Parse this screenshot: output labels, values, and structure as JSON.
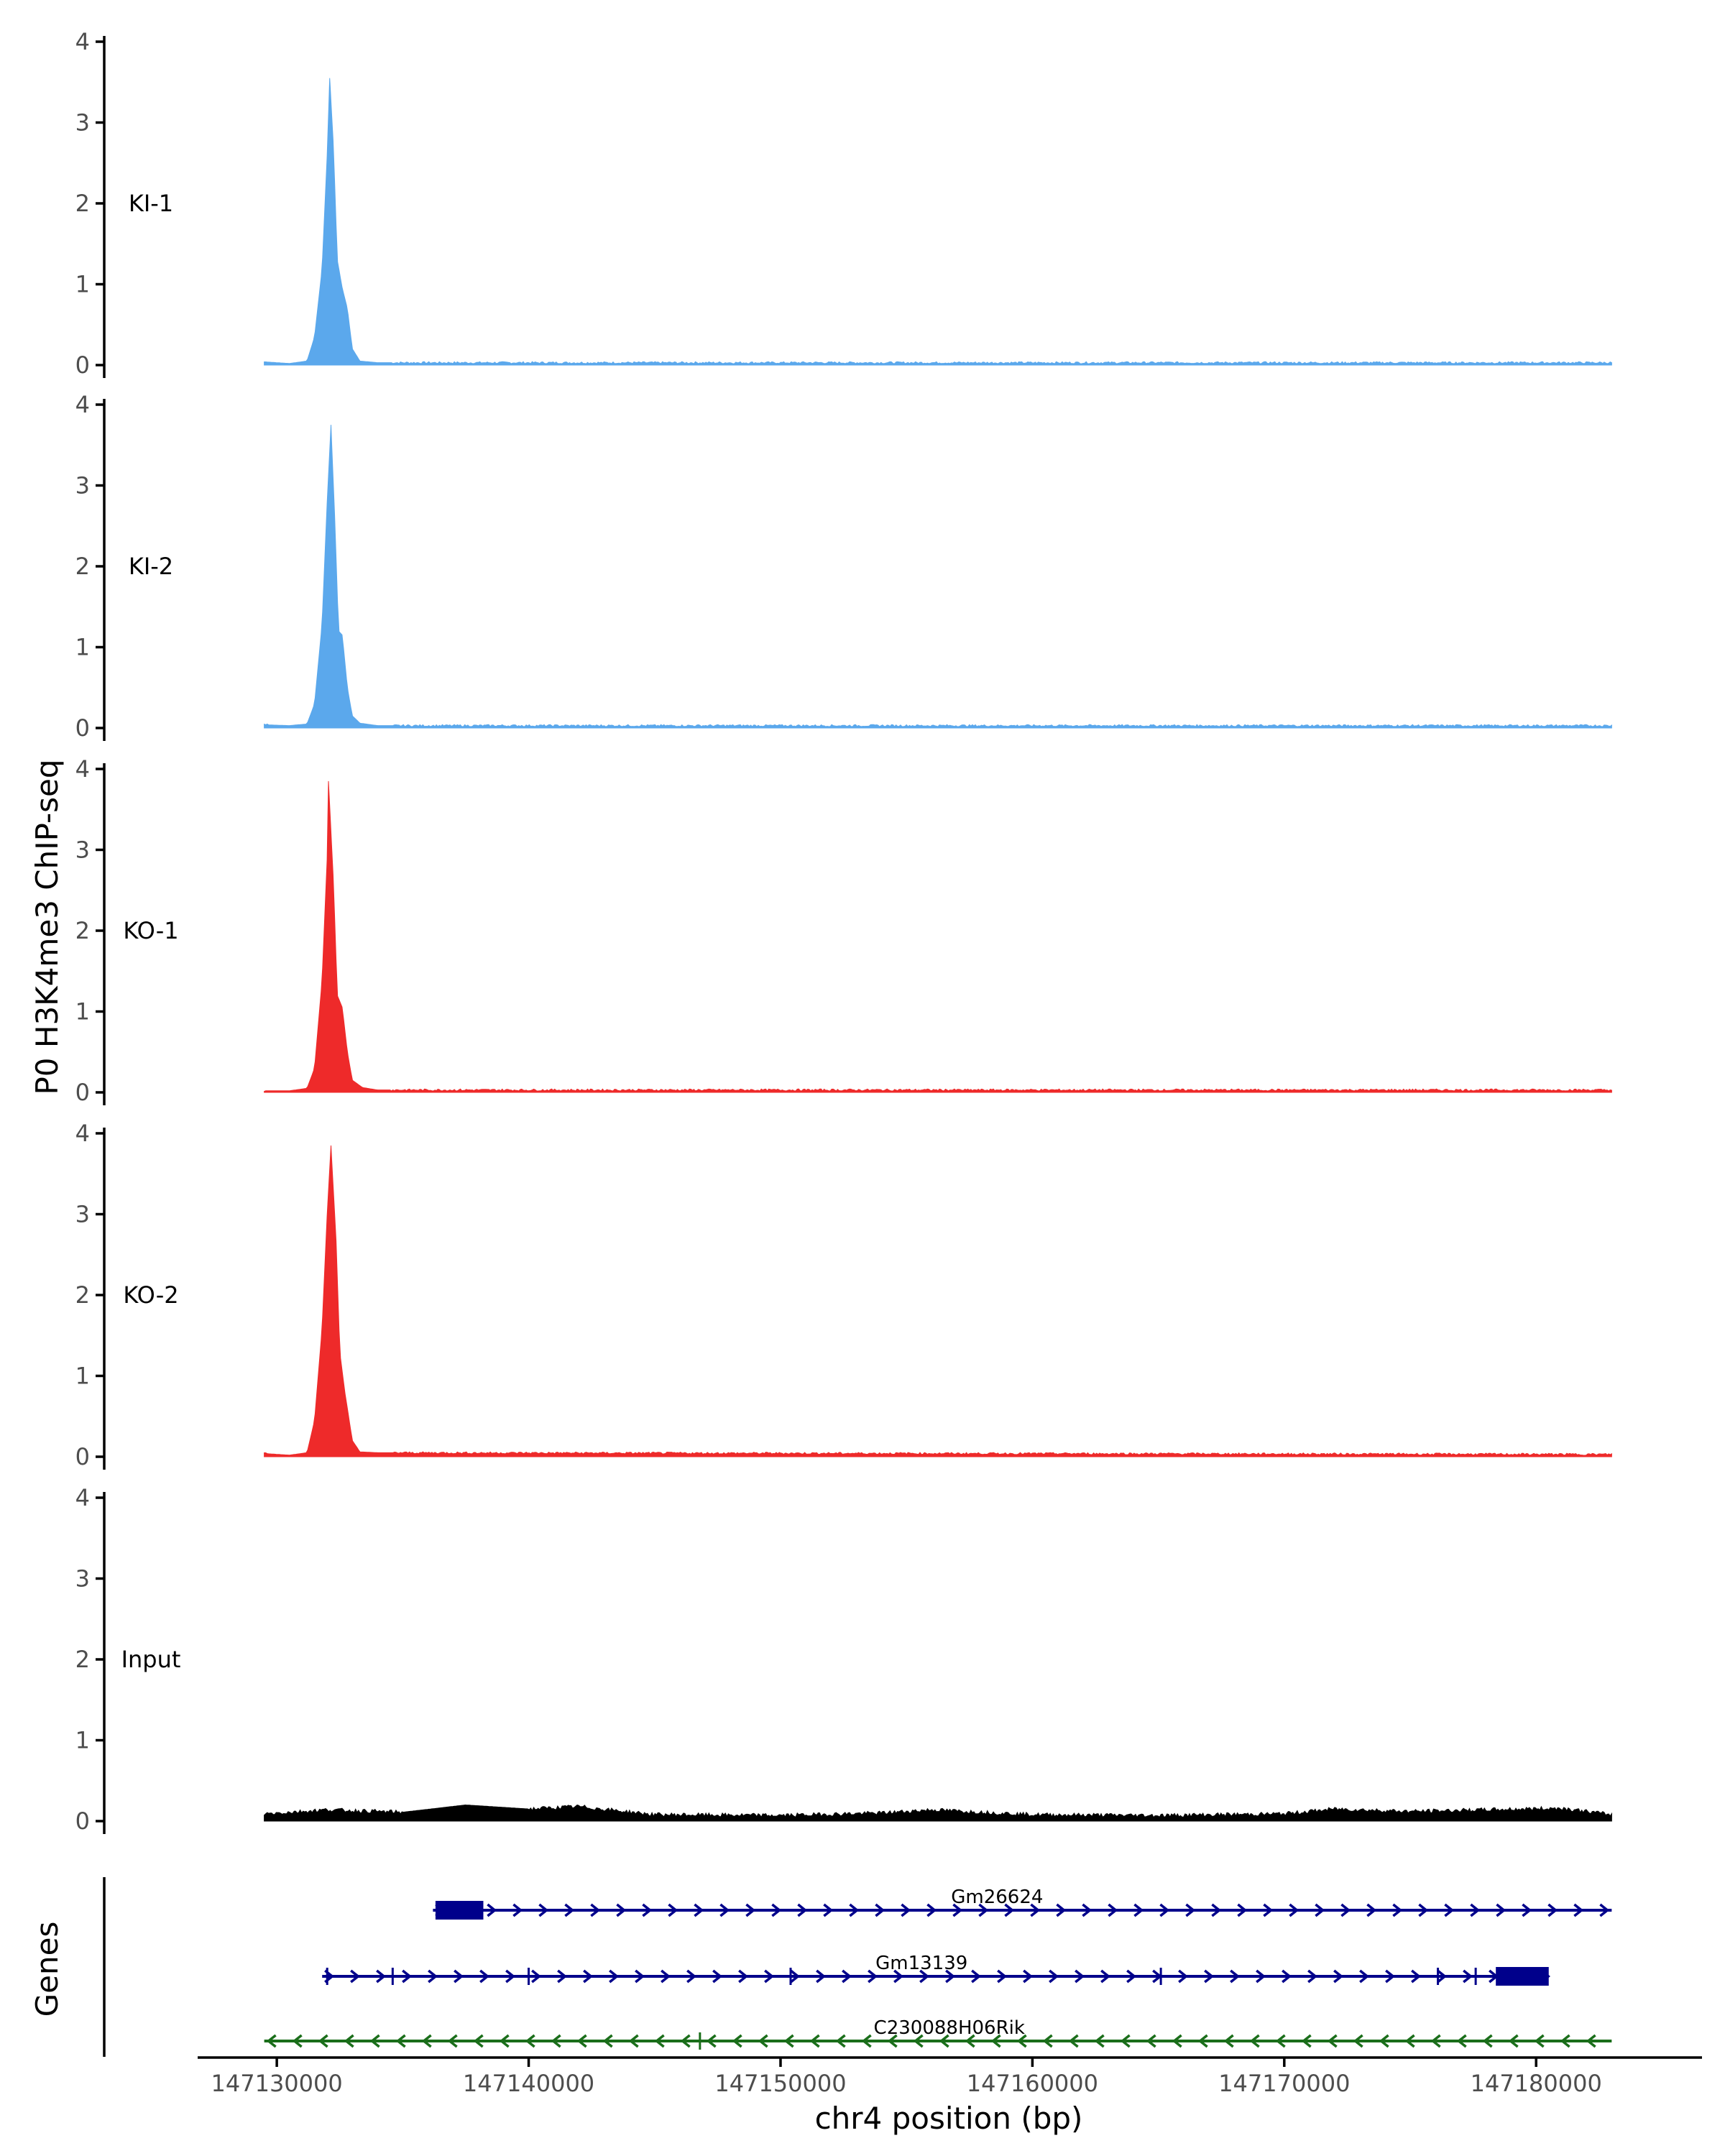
{
  "chart_data": {
    "type": "area",
    "ylabel": "P0 H3K4me3 ChIP-seq",
    "xlabel": "chr4 position (bp)",
    "xlim": [
      147127000,
      147186500
    ],
    "ylim": [
      0,
      4
    ],
    "y_ticks": [
      "0",
      "1",
      "2",
      "3",
      "4"
    ],
    "x_ticks": [
      147130000,
      147140000,
      147150000,
      147160000,
      147170000,
      147180000
    ],
    "x_tick_labels": [
      "147130000",
      "147140000",
      "147150000",
      "147160000",
      "147170000",
      "147180000"
    ],
    "data_range": [
      147129500,
      147183000
    ],
    "grid": false,
    "legend": "none",
    "tracks": [
      {
        "name": "KI-1",
        "color": "#5ba8ec",
        "peak_x": 147132100,
        "peak_y": 3.55,
        "profile": [
          [
            147129500,
            0.04
          ],
          [
            147130500,
            0.02
          ],
          [
            147131200,
            0.05
          ],
          [
            147131500,
            0.35
          ],
          [
            147131800,
            1.2
          ],
          [
            147132000,
            2.6
          ],
          [
            147132100,
            3.55
          ],
          [
            147132250,
            2.7
          ],
          [
            147132400,
            1.3
          ],
          [
            147132600,
            0.95
          ],
          [
            147132800,
            0.7
          ],
          [
            147133000,
            0.2
          ],
          [
            147133300,
            0.05
          ],
          [
            147134000,
            0.03
          ],
          [
            147183000,
            0.03
          ]
        ]
      },
      {
        "name": "KI-2",
        "color": "#5ba8ec",
        "peak_x": 147132150,
        "peak_y": 3.75,
        "profile": [
          [
            147129500,
            0.04
          ],
          [
            147130500,
            0.03
          ],
          [
            147131200,
            0.05
          ],
          [
            147131500,
            0.3
          ],
          [
            147131800,
            1.3
          ],
          [
            147132000,
            2.8
          ],
          [
            147132150,
            3.75
          ],
          [
            147132300,
            2.6
          ],
          [
            147132450,
            1.2
          ],
          [
            147132600,
            1.15
          ],
          [
            147132800,
            0.5
          ],
          [
            147133000,
            0.15
          ],
          [
            147133300,
            0.06
          ],
          [
            147134000,
            0.03
          ],
          [
            147183000,
            0.03
          ]
        ]
      },
      {
        "name": "KO-1",
        "color": "#ee2a2a",
        "peak_x": 147132050,
        "peak_y": 3.85,
        "profile": [
          [
            147129500,
            0.02
          ],
          [
            147130500,
            0.02
          ],
          [
            147131200,
            0.05
          ],
          [
            147131500,
            0.3
          ],
          [
            147131800,
            1.4
          ],
          [
            147132000,
            2.9
          ],
          [
            147132050,
            3.85
          ],
          [
            147132250,
            2.6
          ],
          [
            147132400,
            1.2
          ],
          [
            147132600,
            1.05
          ],
          [
            147132800,
            0.5
          ],
          [
            147133000,
            0.15
          ],
          [
            147133400,
            0.06
          ],
          [
            147134000,
            0.03
          ],
          [
            147183000,
            0.03
          ]
        ]
      },
      {
        "name": "KO-2",
        "color": "#ee2a2a",
        "peak_x": 147132150,
        "peak_y": 3.85,
        "profile": [
          [
            147129500,
            0.04
          ],
          [
            147130500,
            0.02
          ],
          [
            147131200,
            0.05
          ],
          [
            147131500,
            0.45
          ],
          [
            147131800,
            1.6
          ],
          [
            147132000,
            3.0
          ],
          [
            147132150,
            3.85
          ],
          [
            147132350,
            2.7
          ],
          [
            147132500,
            1.3
          ],
          [
            147132700,
            0.8
          ],
          [
            147133000,
            0.2
          ],
          [
            147133300,
            0.06
          ],
          [
            147134000,
            0.05
          ],
          [
            147183000,
            0.03
          ]
        ]
      },
      {
        "name": "Input",
        "color": "#000000",
        "peak_x": 147137500,
        "peak_y": 0.2,
        "profile": [
          [
            147129500,
            0.09
          ],
          [
            147132000,
            0.14
          ],
          [
            147135000,
            0.11
          ],
          [
            147137500,
            0.2
          ],
          [
            147140000,
            0.15
          ],
          [
            147142000,
            0.18
          ],
          [
            147145000,
            0.08
          ],
          [
            147150000,
            0.07
          ],
          [
            147154000,
            0.1
          ],
          [
            147156000,
            0.14
          ],
          [
            147160000,
            0.08
          ],
          [
            147165000,
            0.07
          ],
          [
            147170000,
            0.09
          ],
          [
            147172000,
            0.15
          ],
          [
            147175000,
            0.12
          ],
          [
            147178000,
            0.14
          ],
          [
            147181000,
            0.16
          ],
          [
            147183000,
            0.08
          ]
        ]
      }
    ],
    "genes_label": "Genes",
    "genes": [
      {
        "name": "Gm26624",
        "strand": "+",
        "color": "#00008b",
        "start": 147136200,
        "end": 147183000,
        "label_x": 147158600,
        "exons": [
          [
            147136300,
            147138200
          ]
        ],
        "marks": []
      },
      {
        "name": "Gm13139",
        "strand": "+",
        "color": "#00008b",
        "start": 147131800,
        "end": 147180500,
        "label_x": 147155600,
        "exons": [
          [
            147178400,
            147180500
          ]
        ],
        "marks": [
          147132000,
          147134600,
          147140000,
          147150400,
          147165100,
          147176100,
          147177600
        ]
      },
      {
        "name": "C230088H06Rik",
        "strand": "-",
        "color": "#1a6e1a",
        "start": 147129500,
        "end": 147183000,
        "label_x": 147156700,
        "exons": [],
        "marks": [
          147146800
        ]
      }
    ]
  }
}
